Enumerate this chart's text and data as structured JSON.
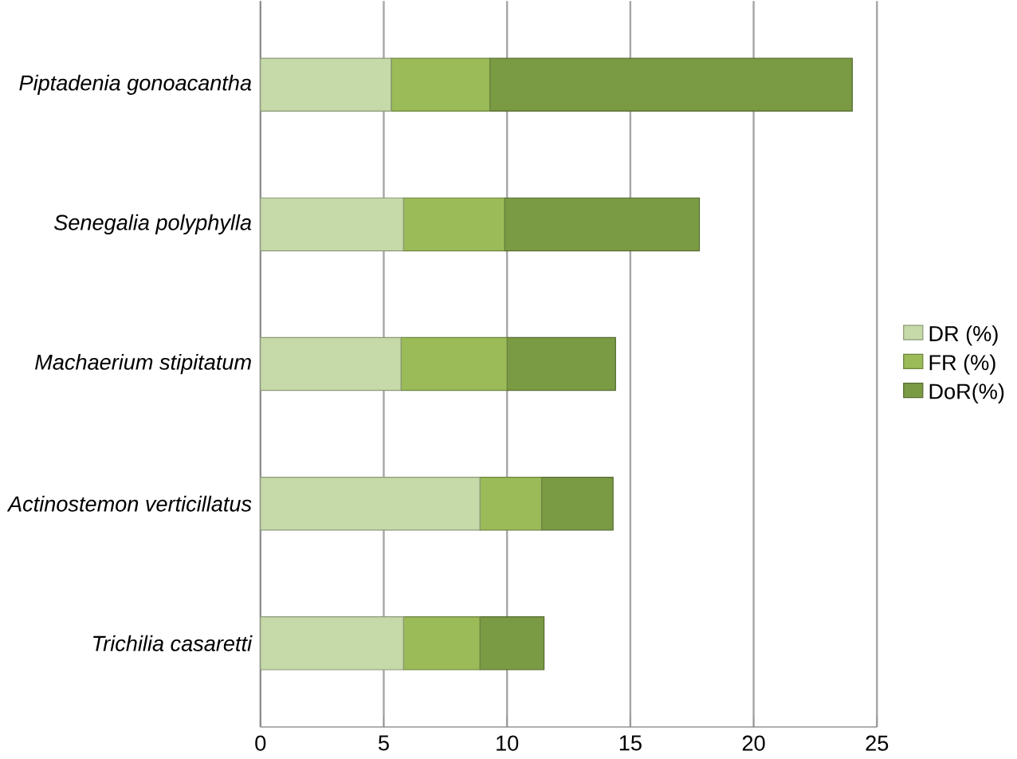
{
  "chart_data": {
    "type": "bar",
    "orientation": "horizontal",
    "stacked": true,
    "categories": [
      "Piptadenia gonoacantha",
      "Senegalia polyphylla",
      "Machaerium stipitatum",
      "Actinostemon verticillatus",
      "Trichilia casaretti"
    ],
    "series": [
      {
        "name": "DR (%)",
        "color": "#c6d9a9",
        "values": [
          5.3,
          5.8,
          5.7,
          8.9,
          5.8
        ]
      },
      {
        "name": "FR (%)",
        "color": "#9bbb59",
        "values": [
          4.0,
          4.1,
          4.3,
          2.5,
          3.1
        ]
      },
      {
        "name": "DoR(%)",
        "color": "#7a9a44",
        "values": [
          14.7,
          7.9,
          4.4,
          2.9,
          2.6
        ]
      }
    ],
    "xlim": [
      0,
      25
    ],
    "xticks": [
      0,
      5,
      10,
      15,
      20,
      25
    ],
    "grid": "x",
    "legend": "right"
  }
}
